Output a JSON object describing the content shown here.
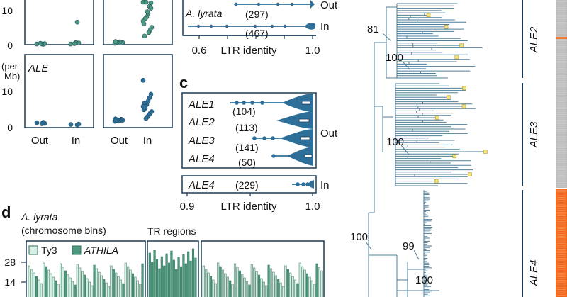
{
  "panel_a": {
    "ticks_top": [
      "10",
      "0"
    ],
    "ticks_bottom": [
      "10",
      "0"
    ],
    "y_unit": "(per\nMb)",
    "row_label": "ALE",
    "x_labels": [
      "Out",
      "In",
      "Out",
      "In"
    ],
    "colors": {
      "green": "#4e9a7f",
      "blue": "#2d6f99"
    },
    "points": {
      "top_left_out": [
        0.2,
        0.3,
        0.1,
        0.2,
        0.4
      ],
      "top_left_in": [
        0.2,
        0.5,
        6.5,
        0.6,
        0.3
      ],
      "top_right_out": [
        0.4,
        0.6,
        0.5,
        0.8,
        0.5,
        0.7,
        0.9
      ],
      "top_right_in": [
        14,
        12,
        11,
        9,
        8,
        7.5,
        6,
        5,
        4.2,
        3.5,
        9.5,
        12.5,
        2.5,
        6.8,
        10.5
      ],
      "bottom_left_out": [
        0.8,
        0.6,
        0.9,
        0.5
      ],
      "bottom_left_in": [
        0.3,
        0.4,
        0.2
      ],
      "bottom_right_out": [
        1.2,
        1.5,
        1.8,
        1.4,
        1.3,
        1.6,
        1.9
      ],
      "bottom_right_in": [
        13,
        9,
        8,
        7,
        6,
        5,
        4.5,
        4,
        3.5,
        3,
        2.5,
        2,
        6.5,
        5.5
      ]
    }
  },
  "panel_b": {
    "row_label": "A. lyrata",
    "row_count": "(297)",
    "row2_count": "(467)",
    "side_labels": [
      "Out",
      "In"
    ],
    "axis_ticks": [
      "0.6",
      "1.0"
    ],
    "axis_label": "LTR identity"
  },
  "panel_c": {
    "letter": "c",
    "rows": [
      {
        "label": "ALE1",
        "count": "(104)"
      },
      {
        "label": "ALE2",
        "count": "(113)"
      },
      {
        "label": "ALE3",
        "count": "(141)"
      },
      {
        "label": "ALE4",
        "count": "(50)"
      }
    ],
    "out_label": "Out",
    "in_row": {
      "label": "ALE4",
      "count": "(229)"
    },
    "in_label": "In",
    "axis_ticks": [
      "0.9",
      "1.0"
    ],
    "axis_label": "LTR identity"
  },
  "panel_d": {
    "letter": "d",
    "title_line1": "A. lyrata",
    "title_line2": "(chromosome bins)",
    "tr_label": "TR regions",
    "legend": [
      "Ty3",
      "ATHILA"
    ],
    "ticks": [
      "28",
      "14"
    ],
    "colors": {
      "ty3": "#d8f0e4",
      "athila": "#4e9a7f"
    }
  },
  "tree": {
    "bootstrap": [
      "81",
      "100",
      "100",
      "100",
      "99",
      "100"
    ],
    "clades": [
      "ALE2",
      "ALE3",
      "ALE4"
    ],
    "strip_colors": {
      "orange": "#f26b1d",
      "grey": "#bdbdbd"
    }
  }
}
